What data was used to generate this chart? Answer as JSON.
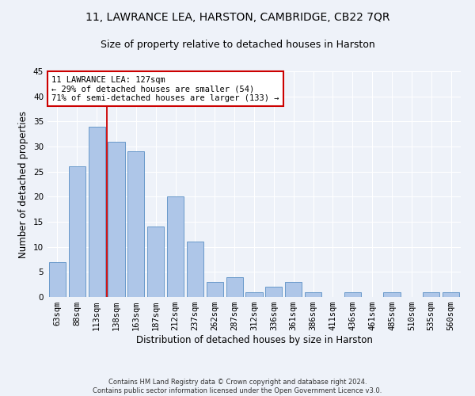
{
  "title_line1": "11, LAWRANCE LEA, HARSTON, CAMBRIDGE, CB22 7QR",
  "title_line2": "Size of property relative to detached houses in Harston",
  "xlabel": "Distribution of detached houses by size in Harston",
  "ylabel": "Number of detached properties",
  "footer_line1": "Contains HM Land Registry data © Crown copyright and database right 2024.",
  "footer_line2": "Contains public sector information licensed under the Open Government Licence v3.0.",
  "bar_labels": [
    "63sqm",
    "88sqm",
    "113sqm",
    "138sqm",
    "163sqm",
    "187sqm",
    "212sqm",
    "237sqm",
    "262sqm",
    "287sqm",
    "312sqm",
    "336sqm",
    "361sqm",
    "386sqm",
    "411sqm",
    "436sqm",
    "461sqm",
    "485sqm",
    "510sqm",
    "535sqm",
    "560sqm"
  ],
  "bar_values": [
    7,
    26,
    34,
    31,
    29,
    14,
    20,
    11,
    3,
    4,
    1,
    2,
    3,
    1,
    0,
    1,
    0,
    1,
    0,
    1,
    1
  ],
  "bar_color": "#aec6e8",
  "bar_edge_color": "#5a8fc4",
  "property_line_x": 2.5,
  "annotation_text": "11 LAWRANCE LEA: 127sqm\n← 29% of detached houses are smaller (54)\n71% of semi-detached houses are larger (133) →",
  "annotation_box_color": "#ffffff",
  "annotation_border_color": "#cc0000",
  "property_line_color": "#cc0000",
  "ylim": [
    0,
    45
  ],
  "yticks": [
    0,
    5,
    10,
    15,
    20,
    25,
    30,
    35,
    40,
    45
  ],
  "background_color": "#eef2f9",
  "grid_color": "#ffffff",
  "title_fontsize": 10,
  "subtitle_fontsize": 9,
  "axis_label_fontsize": 8.5,
  "tick_fontsize": 7.5,
  "annotation_fontsize": 7.5
}
